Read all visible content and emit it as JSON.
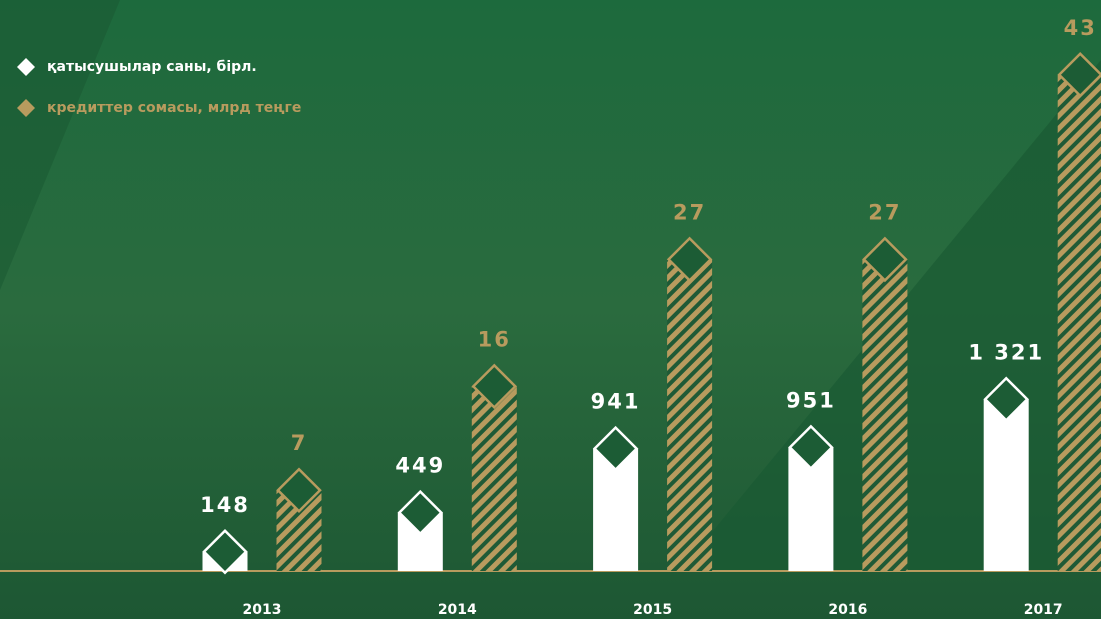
{
  "chart_data": {
    "type": "bar",
    "categories": [
      "2013",
      "2014",
      "2015",
      "2016",
      "2017"
    ],
    "series": [
      {
        "name": "қатысушылар саны, бірл.",
        "color": "#ffffff",
        "values": [
          148,
          449,
          941,
          951,
          1321
        ],
        "value_labels": [
          "148",
          "449",
          "941",
          "951",
          "1 321"
        ]
      },
      {
        "name": "кредиттер сомасы, млрд теңге",
        "color": "#b89b5e",
        "values": [
          7,
          16,
          27,
          27,
          43
        ]
      }
    ]
  }
}
